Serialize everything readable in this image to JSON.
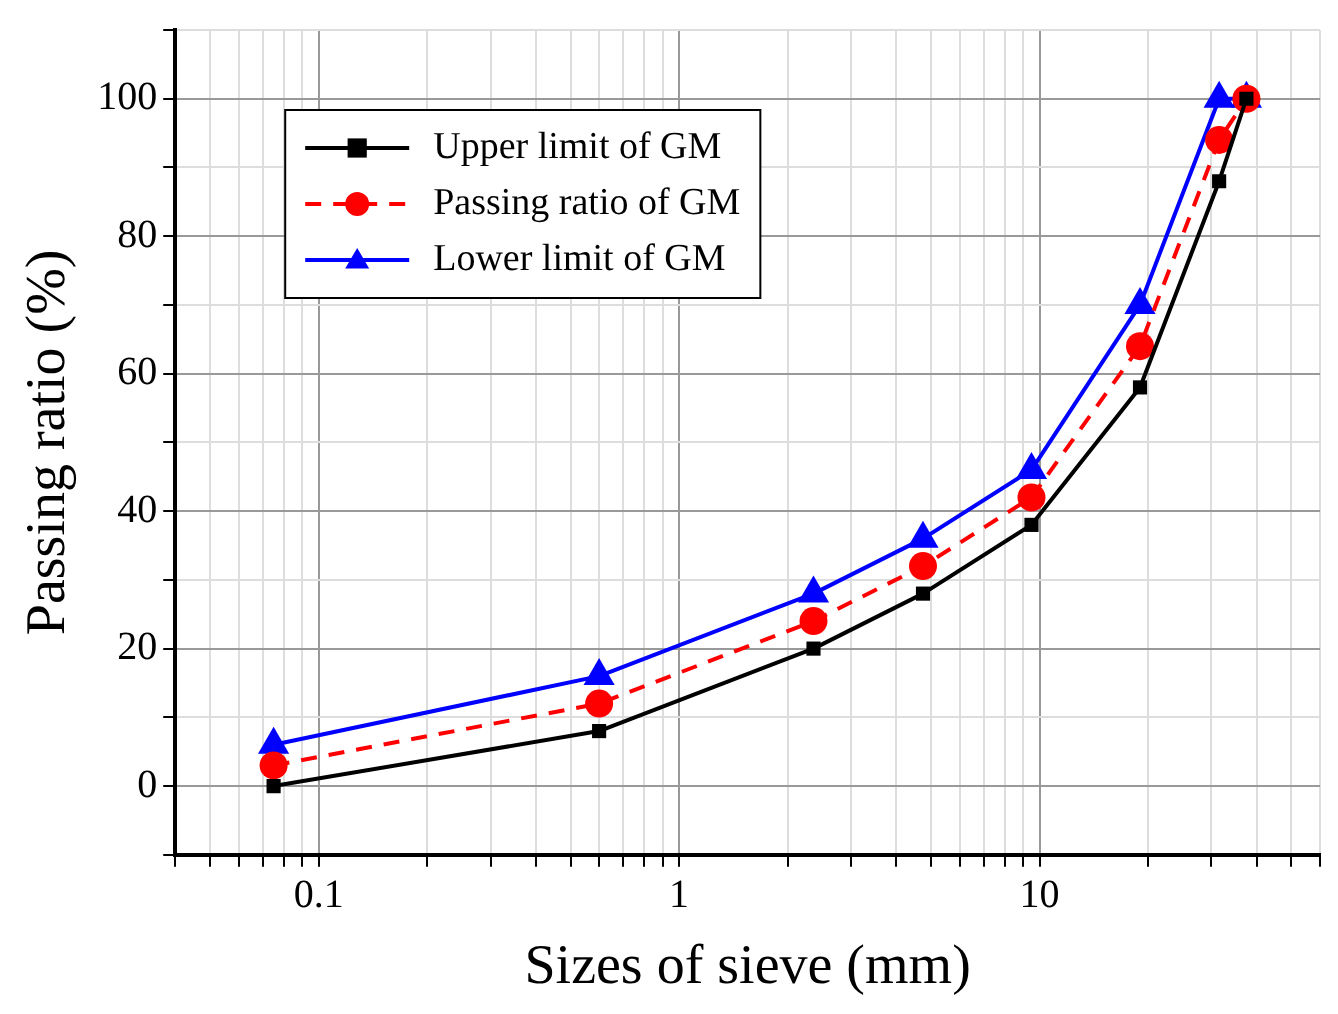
{
  "chart_data": {
    "type": "line",
    "xlabel": "Sizes of sieve (mm)",
    "ylabel": "Passing ratio (%)",
    "x": [
      0.075,
      0.6,
      2.36,
      4.75,
      9.5,
      19,
      31.5,
      37.5
    ],
    "series": [
      {
        "name": "Upper limit of GM",
        "color": "#000000",
        "marker": "square",
        "line_style": "solid",
        "values": [
          0,
          8,
          20,
          28,
          38,
          58,
          88,
          100
        ]
      },
      {
        "name": "Passing ratio of GM",
        "color": "#ff0000",
        "marker": "circle",
        "line_style": "dashed",
        "values": [
          3,
          12,
          24,
          32,
          42,
          64,
          94,
          100
        ]
      },
      {
        "name": "Lower limit of GM",
        "color": "#0000ff",
        "marker": "triangle",
        "line_style": "solid",
        "values": [
          6,
          16,
          28,
          36,
          46,
          70,
          100,
          100
        ]
      }
    ],
    "log": "x",
    "xlim": [
      0.04,
      60
    ],
    "ylim": [
      -10,
      110
    ],
    "xticks": [
      {
        "value": 0.04,
        "label": null
      },
      {
        "value": 0.05,
        "label": null
      },
      {
        "value": 0.06,
        "label": null
      },
      {
        "value": 0.07,
        "label": null
      },
      {
        "value": 0.08,
        "label": null
      },
      {
        "value": 0.09,
        "label": null
      },
      0.1,
      {
        "value": 0.2,
        "label": null
      },
      {
        "value": 0.3,
        "label": null
      },
      {
        "value": 0.4,
        "label": null
      },
      {
        "value": 0.5,
        "label": null
      },
      {
        "value": 0.6,
        "label": null
      },
      {
        "value": 0.7,
        "label": null
      },
      {
        "value": 0.8,
        "label": null
      },
      {
        "value": 0.9,
        "label": null
      },
      1,
      {
        "value": 2,
        "label": null
      },
      {
        "value": 3,
        "label": null
      },
      {
        "value": 4,
        "label": null
      },
      {
        "value": 5,
        "label": null
      },
      {
        "value": 6,
        "label": null
      },
      {
        "value": 7,
        "label": null
      },
      {
        "value": 8,
        "label": null
      },
      {
        "value": 9,
        "label": null
      },
      10,
      {
        "value": 20,
        "label": null
      },
      {
        "value": 30,
        "label": null
      },
      {
        "value": 40,
        "label": null
      },
      {
        "value": 50,
        "label": null
      },
      {
        "value": 60,
        "label": null
      }
    ],
    "yticks": [
      {
        "value": -10,
        "label": null
      },
      0,
      {
        "value": 10,
        "label": null
      },
      20,
      {
        "value": 30,
        "label": null
      },
      40,
      {
        "value": 50,
        "label": null
      },
      60,
      {
        "value": 70,
        "label": null
      },
      80,
      {
        "value": 90,
        "label": null
      },
      100,
      {
        "value": 110,
        "label": null
      }
    ],
    "grid": true,
    "legend": "top left"
  }
}
